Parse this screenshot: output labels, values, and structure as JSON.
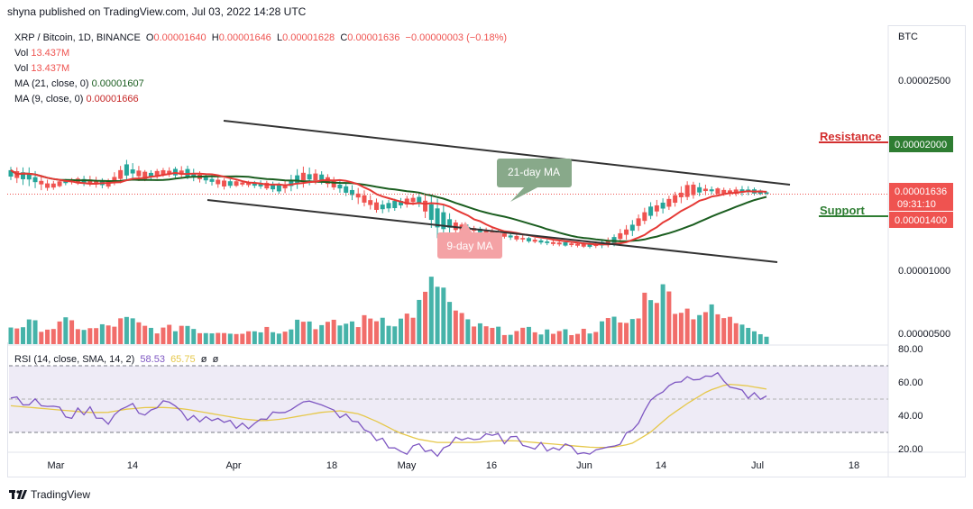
{
  "header": {
    "published": "shyna published on TradingView.com, Jul 03, 2022 14:28 UTC"
  },
  "legend": {
    "symbol": "XRP / Bitcoin, 1D, BINANCE",
    "o_label": "O",
    "o": "0.00001640",
    "h_label": "H",
    "h": "0.00001646",
    "l_label": "L",
    "l": "0.00001628",
    "c_label": "C",
    "c": "0.00001636",
    "change": "−0.00000003 (−0.18%)",
    "vol1_label": "Vol",
    "vol1": "13.437M",
    "vol2_label": "Vol",
    "vol2": "13.437M",
    "ma21_label": "MA (21, close, 0)",
    "ma21": "0.00001607",
    "ma9_label": "MA (9, close, 0)",
    "ma9": "0.00001666",
    "rsi_label": "RSI (14, close, SMA, 14, 2)",
    "rsi": "58.53",
    "rsi_sma": "65.75",
    "rsi_x1": "ø",
    "rsi_x2": "ø"
  },
  "price_axis": {
    "currency": "BTC",
    "ticks": [
      "0.00002500",
      "0.00001000",
      "0.00000500"
    ],
    "resistance_value": "0.00002000",
    "current_value": "0.00001636",
    "countdown": "09:31:10",
    "support_value": "0.00001400"
  },
  "rsi_axis": {
    "ticks": [
      "80.00",
      "60.00",
      "40.00",
      "20.00"
    ]
  },
  "time_axis": [
    "Mar",
    "14",
    "Apr",
    "18",
    "May",
    "16",
    "Jun",
    "14",
    "Jul",
    "18"
  ],
  "annotations": {
    "resistance": "Resistance",
    "support": "Support",
    "ma21_callout": "21-day MA",
    "ma9_callout": "9-day MA"
  },
  "colors": {
    "up": "#26a69a",
    "down": "#ef5350",
    "ma9": "#e53935",
    "ma21": "#1b5e20",
    "rsi": "#7e57c2",
    "rsi_sma": "#e6c84b",
    "resistance": "#d32f2f",
    "support": "#2e7d32"
  },
  "footer": {
    "brand": "TradingView"
  },
  "chart_data": {
    "type": "candlestick",
    "symbol": "XRP / Bitcoin",
    "timeframe": "1D",
    "exchange": "BINANCE",
    "x_range": [
      "2022-02-23",
      "2022-07-03"
    ],
    "price_ylim": [
      4.5e-06,
      2.85e-05
    ],
    "levels": {
      "resistance": 2e-05,
      "support": 1.4e-05,
      "last": 1.636e-05
    },
    "rsi_ylim": [
      20,
      80
    ],
    "rsi_band": [
      30,
      70
    ],
    "price_path": [
      [
        1.85e-05,
        1.75e-05
      ],
      [
        1.84e-05,
        1.7e-05
      ],
      [
        1.73e-05,
        1.66e-05
      ],
      [
        1.76e-05,
        1.72e-05
      ],
      [
        1.78e-05,
        1.7e-05
      ],
      [
        1.75e-05,
        1.68e-05
      ],
      [
        1.9e-05,
        1.76e-05
      ],
      [
        1.82e-05,
        1.74e-05
      ],
      [
        1.84e-05,
        1.78e-05
      ],
      [
        1.86e-05,
        1.76e-05
      ],
      [
        1.8e-05,
        1.72e-05
      ],
      [
        1.76e-05,
        1.68e-05
      ],
      [
        1.74e-05,
        1.7e-05
      ],
      [
        1.74e-05,
        1.68e-05
      ],
      [
        1.72e-05,
        1.64e-05
      ],
      [
        1.85e-05,
        1.7e-05
      ],
      [
        1.82e-05,
        1.72e-05
      ],
      [
        1.74e-05,
        1.65e-05
      ],
      [
        1.68e-05,
        1.56e-05
      ],
      [
        1.58e-05,
        1.48e-05
      ],
      [
        1.6e-05,
        1.52e-05
      ],
      [
        1.64e-05,
        1.56e-05
      ],
      [
        1.6e-05,
        1.3e-05
      ],
      [
        1.42e-05,
        1.34e-05
      ],
      [
        1.38e-05,
        1.33e-05
      ],
      [
        1.36e-05,
        1.3e-05
      ],
      [
        1.32e-05,
        1.27e-05
      ],
      [
        1.29e-05,
        1.25e-05
      ],
      [
        1.27e-05,
        1.23e-05
      ],
      [
        1.26e-05,
        1.22e-05
      ],
      [
        1.25e-05,
        1.21e-05
      ],
      [
        1.3e-05,
        1.22e-05
      ],
      [
        1.42e-05,
        1.3e-05
      ],
      [
        1.56e-05,
        1.44e-05
      ],
      [
        1.62e-05,
        1.52e-05
      ],
      [
        1.74e-05,
        1.6e-05
      ],
      [
        1.7e-05,
        1.64e-05
      ],
      [
        1.68e-05,
        1.62e-05
      ],
      [
        1.7e-05,
        1.63e-05
      ],
      [
        1.66e-05,
        1.63e-05
      ]
    ],
    "volume_path": [
      0.9,
      1.0,
      0.8,
      1.1,
      0.7,
      0.9,
      1.2,
      0.8,
      0.7,
      1.0,
      0.6,
      0.7,
      0.6,
      0.8,
      0.7,
      1.3,
      0.9,
      1.0,
      1.1,
      1.4,
      1.1,
      1.8,
      3.2,
      1.4,
      0.9,
      0.7,
      0.6,
      0.7,
      0.6,
      0.6,
      0.7,
      1.2,
      1.0,
      2.8,
      2.4,
      1.6,
      1.7,
      1.2,
      1.1,
      0.4
    ],
    "rsi_path": [
      62,
      58,
      56,
      50,
      54,
      47,
      56,
      52,
      58,
      50,
      47,
      45,
      44,
      48,
      52,
      60,
      55,
      51,
      44,
      36,
      28,
      31,
      26,
      38,
      36,
      37,
      35,
      33,
      31,
      30,
      28,
      32,
      40,
      58,
      70,
      73,
      76,
      70,
      62,
      59
    ],
    "rsi_sma_path": [
      56,
      55,
      54,
      53,
      52,
      52,
      54,
      55,
      55,
      54,
      52,
      50,
      48,
      47,
      48,
      50,
      52,
      53,
      51,
      46,
      40,
      36,
      34,
      34,
      34,
      35,
      35,
      34,
      33,
      32,
      31,
      31,
      33,
      40,
      50,
      58,
      65,
      69,
      68,
      66
    ]
  }
}
